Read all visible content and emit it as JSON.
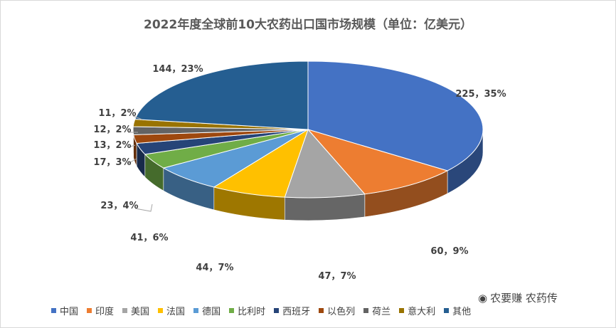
{
  "chart_data": {
    "type": "pie",
    "title": "2022年度全球前10大农药出口国市场规模（单位：亿美元）",
    "categories": [
      "中国",
      "印度",
      "美国",
      "法国",
      "德国",
      "比利时",
      "西班牙",
      "以色列",
      "荷兰",
      "意大利",
      "其他"
    ],
    "values": [
      225,
      60,
      47,
      44,
      41,
      23,
      17,
      13,
      12,
      11,
      144
    ],
    "data_labels": [
      "225，35%",
      "60，9%",
      "47，7%",
      "44，7%",
      "41，6%",
      "23，4%",
      "17，3%",
      "13，2%",
      "12，2%",
      "11，2%",
      "144，23%"
    ],
    "colors": [
      "#4472c4",
      "#ed7d31",
      "#a5a5a5",
      "#ffc000",
      "#5b9bd5",
      "#70ad47",
      "#264478",
      "#9e480e",
      "#636363",
      "#997300",
      "#255e91"
    ],
    "legend_position": "bottom",
    "style": "3d"
  },
  "watermark": {
    "text": "农要赚 农药传",
    "icon": "wechat-icon"
  }
}
